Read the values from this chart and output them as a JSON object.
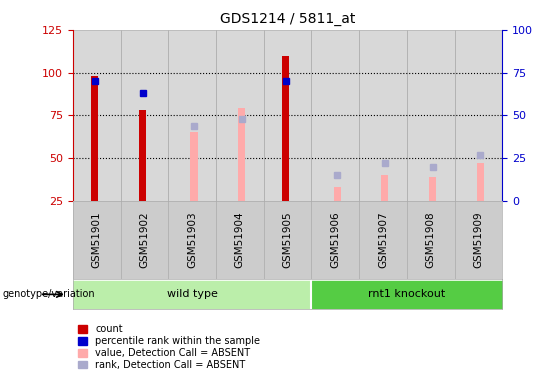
{
  "title": "GDS1214 / 5811_at",
  "samples": [
    "GSM51901",
    "GSM51902",
    "GSM51903",
    "GSM51904",
    "GSM51905",
    "GSM51906",
    "GSM51907",
    "GSM51908",
    "GSM51909"
  ],
  "count_values": [
    98,
    78,
    null,
    null,
    110,
    null,
    null,
    null,
    null
  ],
  "percentile_rank": [
    70,
    63,
    null,
    null,
    70,
    null,
    null,
    null,
    null
  ],
  "absent_value": [
    null,
    null,
    65,
    79,
    null,
    33,
    40,
    39,
    47
  ],
  "absent_rank": [
    null,
    null,
    44,
    48,
    null,
    15,
    22,
    20,
    27
  ],
  "ylim_left": [
    25,
    125
  ],
  "ylim_right": [
    0,
    100
  ],
  "yticks_left": [
    25,
    50,
    75,
    100,
    125
  ],
  "yticks_right": [
    0,
    25,
    50,
    75,
    100
  ],
  "color_count": "#cc0000",
  "color_rank": "#0000cc",
  "color_absent_value": "#ffaaaa",
  "color_absent_rank": "#aaaacc",
  "color_group1_light": "#bbeeaa",
  "color_group2_mid": "#55cc44",
  "bg_label": "#cccccc",
  "legend_items": [
    "count",
    "percentile rank within the sample",
    "value, Detection Call = ABSENT",
    "rank, Detection Call = ABSENT"
  ]
}
